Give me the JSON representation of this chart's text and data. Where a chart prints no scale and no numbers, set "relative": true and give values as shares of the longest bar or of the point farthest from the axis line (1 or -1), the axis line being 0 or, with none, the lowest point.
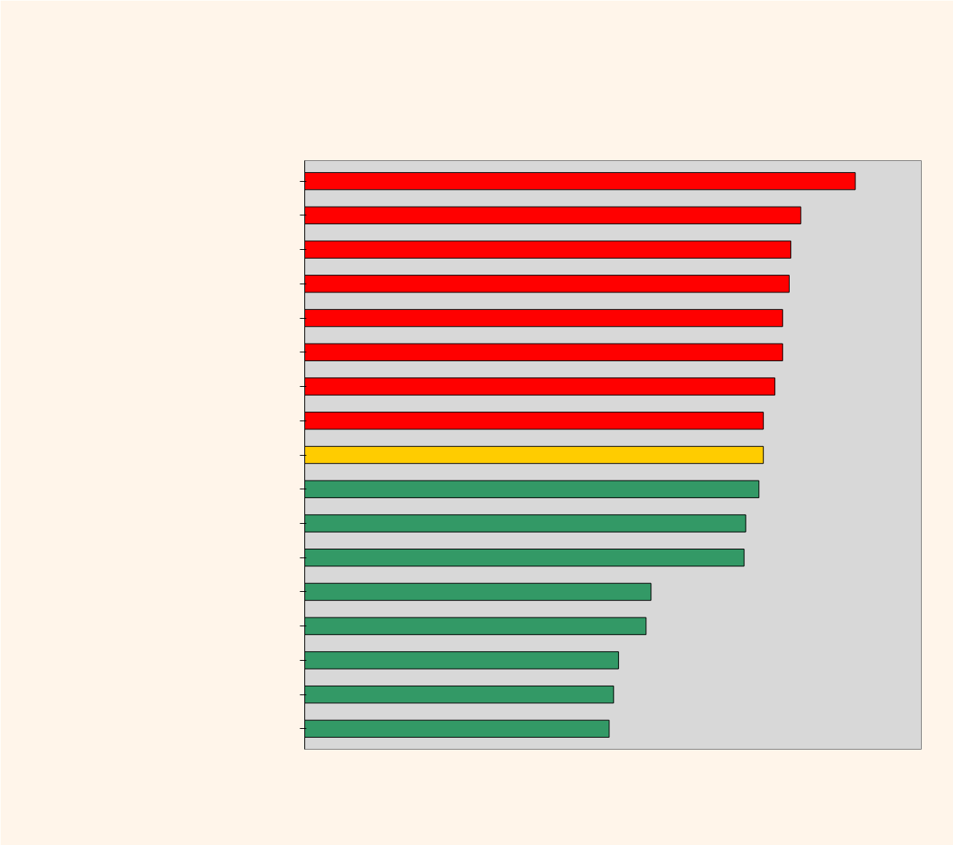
{
  "chart_data": {
    "type": "bar",
    "orientation": "horizontal",
    "relative": true,
    "categories": [
      null,
      null,
      null,
      null,
      null,
      null,
      null,
      null,
      null,
      null,
      null,
      null,
      null,
      null,
      null,
      null,
      null
    ],
    "values": [
      1,
      0.901,
      0.883,
      0.88,
      0.868,
      0.868,
      0.854,
      0.833,
      0.833,
      0.825,
      0.801,
      0.798,
      0.629,
      0.62,
      0.57,
      0.561,
      0.553
    ],
    "colors": [
      "#ff0000",
      "#ff0000",
      "#ff0000",
      "#ff0000",
      "#ff0000",
      "#ff0000",
      "#ff0000",
      "#ff0000",
      "#ffcc00",
      "#339966",
      "#339966",
      "#339966",
      "#339966",
      "#339966",
      "#339966",
      "#339966",
      "#339966"
    ]
  }
}
